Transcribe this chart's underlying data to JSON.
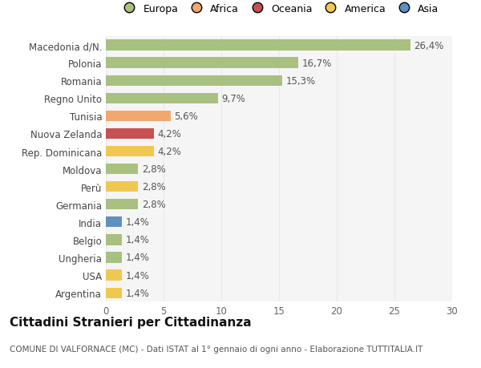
{
  "countries": [
    "Macedonia d/N.",
    "Polonia",
    "Romania",
    "Regno Unito",
    "Tunisia",
    "Nuova Zelanda",
    "Rep. Dominicana",
    "Moldova",
    "Perù",
    "Germania",
    "India",
    "Belgio",
    "Ungheria",
    "USA",
    "Argentina"
  ],
  "values": [
    26.4,
    16.7,
    15.3,
    9.7,
    5.6,
    4.2,
    4.2,
    2.8,
    2.8,
    2.8,
    1.4,
    1.4,
    1.4,
    1.4,
    1.4
  ],
  "labels": [
    "26,4%",
    "16,7%",
    "15,3%",
    "9,7%",
    "5,6%",
    "4,2%",
    "4,2%",
    "2,8%",
    "2,8%",
    "2,8%",
    "1,4%",
    "1,4%",
    "1,4%",
    "1,4%",
    "1,4%"
  ],
  "continents": [
    "Europa",
    "Europa",
    "Europa",
    "Europa",
    "Africa",
    "Oceania",
    "America",
    "Europa",
    "America",
    "Europa",
    "Asia",
    "Europa",
    "Europa",
    "America",
    "America"
  ],
  "continent_colors": {
    "Europa": "#a8c080",
    "Africa": "#f0a870",
    "Oceania": "#c85050",
    "America": "#f0c850",
    "Asia": "#6090c0"
  },
  "legend_order": [
    "Europa",
    "Africa",
    "Oceania",
    "America",
    "Asia"
  ],
  "title": "Cittadini Stranieri per Cittadinanza",
  "subtitle": "COMUNE DI VALFORNACE (MC) - Dati ISTAT al 1° gennaio di ogni anno - Elaborazione TUTTITALIA.IT",
  "xlim": [
    0,
    30
  ],
  "xticks": [
    0,
    5,
    10,
    15,
    20,
    25,
    30
  ],
  "bg_color": "#ffffff",
  "plot_bg_color": "#f5f5f5",
  "grid_color": "#e8e8e8",
  "bar_height": 0.6,
  "label_fontsize": 8.5,
  "tick_fontsize": 8.5,
  "title_fontsize": 11,
  "subtitle_fontsize": 7.5
}
